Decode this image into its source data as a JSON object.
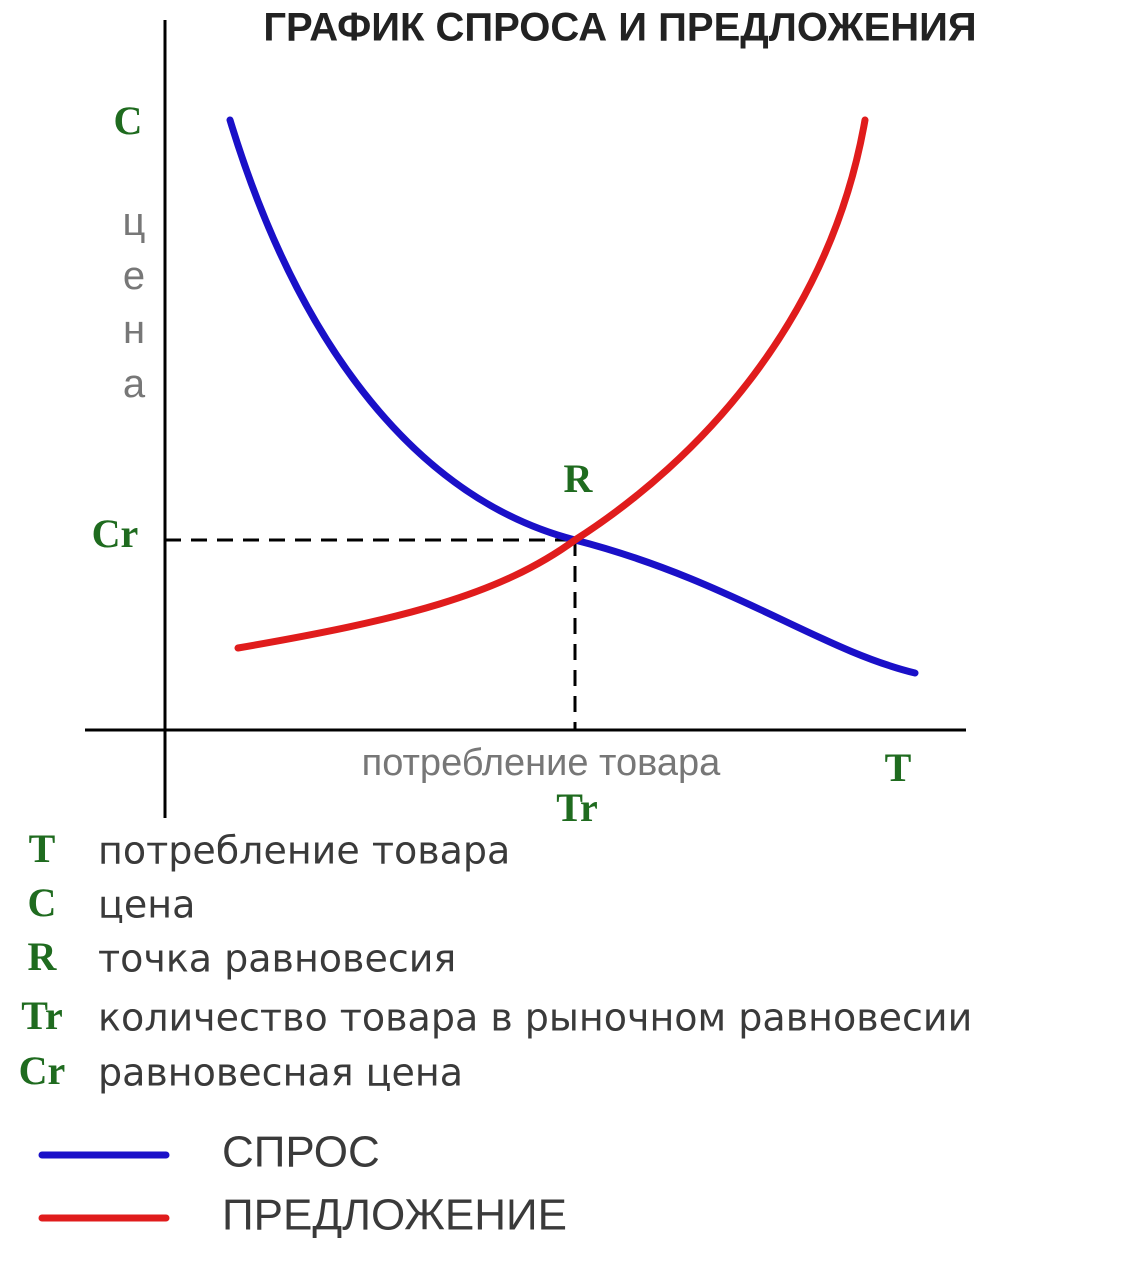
{
  "title": "ГРАФИК СПРОСА И ПРЕДЛОЖЕНИЯ",
  "axes": {
    "y_symbol": "C",
    "y_label": "цена",
    "x_label": "потребление товара",
    "x_symbol": "T"
  },
  "equilibrium": {
    "point": "R",
    "price": "Cr",
    "quantity": "Tr"
  },
  "definitions": [
    {
      "symbol": "T",
      "text": "потребление товара"
    },
    {
      "symbol": "C",
      "text": "цена"
    },
    {
      "symbol": "R",
      "text": "точка равновесия"
    },
    {
      "symbol": "Tr",
      "text": "количество товара в рыночном равновесии"
    },
    {
      "symbol": "Cr",
      "text": "равновесная цена"
    }
  ],
  "legend": [
    {
      "name": "СПРОС",
      "color": "#1a10c8"
    },
    {
      "name": "ПРЕДЛОЖЕНИЕ",
      "color": "#e01c1c"
    }
  ]
}
